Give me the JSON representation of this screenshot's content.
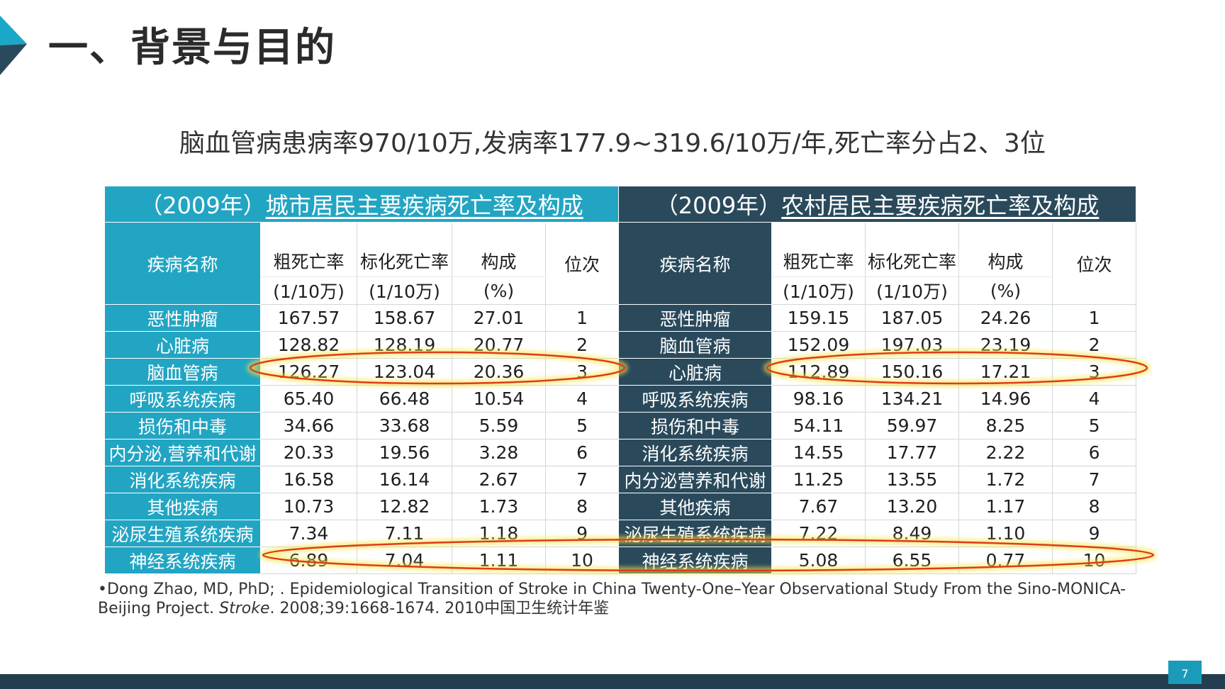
{
  "title": "一、背景与目的",
  "subtitle": "脑血管病患病率970/10万,发病率177.9~319.6/10万/年,死亡率分占2、3位",
  "colors": {
    "teal": "#22a5c3",
    "navy": "#2a4a5c",
    "highlight_oval": "#e03a1e",
    "oval_glow": "#f5e64a"
  },
  "urban": {
    "title_prefix": "（2009年）",
    "title_link": "城市居民主要疾病死亡率及构成",
    "header": {
      "name": "疾病名称",
      "crude": "粗死亡率",
      "standard": "标化死亡率",
      "composition": "构成",
      "rank": "位次"
    },
    "units": {
      "crude": "(1/10万)",
      "standard": "(1/10万)",
      "composition": "(%)"
    },
    "rows": [
      [
        "恶性肿瘤",
        "167.57",
        "158.67",
        "27.01",
        "1"
      ],
      [
        "心脏病",
        "128.82",
        "128.19",
        "20.77",
        "2"
      ],
      [
        "脑血管病",
        "126.27",
        "123.04",
        "20.36",
        "3"
      ],
      [
        "呼吸系统疾病",
        "65.40",
        "66.48",
        "10.54",
        "4"
      ],
      [
        "损伤和中毒",
        "34.66",
        "33.68",
        "5.59",
        "5"
      ],
      [
        "内分泌,营养和代谢",
        "20.33",
        "19.56",
        "3.28",
        "6"
      ],
      [
        "消化系统疾病",
        "16.58",
        "16.14",
        "2.67",
        "7"
      ],
      [
        "其他疾病",
        "10.73",
        "12.82",
        "1.73",
        "8"
      ],
      [
        "泌尿生殖系统疾病",
        "7.34",
        "7.11",
        "1.18",
        "9"
      ],
      [
        "神经系统疾病",
        "6.89",
        "7.04",
        "1.11",
        "10"
      ]
    ]
  },
  "rural": {
    "title_prefix": "（2009年）",
    "title_link": "农村居民主要疾病死亡率及构成",
    "header": {
      "name": "疾病名称",
      "crude": "粗死亡率",
      "standard": "标化死亡率",
      "composition": "构成",
      "rank": "位次"
    },
    "units": {
      "crude": "(1/10万)",
      "standard": "(1/10万)",
      "composition": "(%)"
    },
    "rows": [
      [
        "恶性肿瘤",
        "159.15",
        "187.05",
        "24.26",
        "1"
      ],
      [
        "脑血管病",
        "152.09",
        "197.03",
        "23.19",
        "2"
      ],
      [
        "心脏病",
        "112.89",
        "150.16",
        "17.21",
        "3"
      ],
      [
        "呼吸系统疾病",
        "98.16",
        "134.21",
        "14.96",
        "4"
      ],
      [
        "损伤和中毒",
        "54.11",
        "59.97",
        "8.25",
        "5"
      ],
      [
        "消化系统疾病",
        "14.55",
        "17.77",
        "2.22",
        "6"
      ],
      [
        "内分泌营养和代谢",
        "11.25",
        "13.55",
        "1.72",
        "7"
      ],
      [
        "其他疾病",
        "7.67",
        "13.20",
        "1.17",
        "8"
      ],
      [
        "泌尿生殖系统疾病",
        "7.22",
        "8.49",
        "1.10",
        "9"
      ],
      [
        "神经系统疾病",
        "5.08",
        "6.55",
        "0.77",
        "10"
      ]
    ]
  },
  "reference": {
    "line1": "•Dong Zhao, MD, PhD; . Epidemiological Transition of Stroke in China Twenty-One–Year Observational Study From the Sino-MONICA-",
    "line2_pre": "Beijing Project. ",
    "line2_journal": "Stroke",
    "line2_post": ". 2008;39:1668-1674.    2010中国卫生统计年鉴"
  },
  "page_number": "7"
}
